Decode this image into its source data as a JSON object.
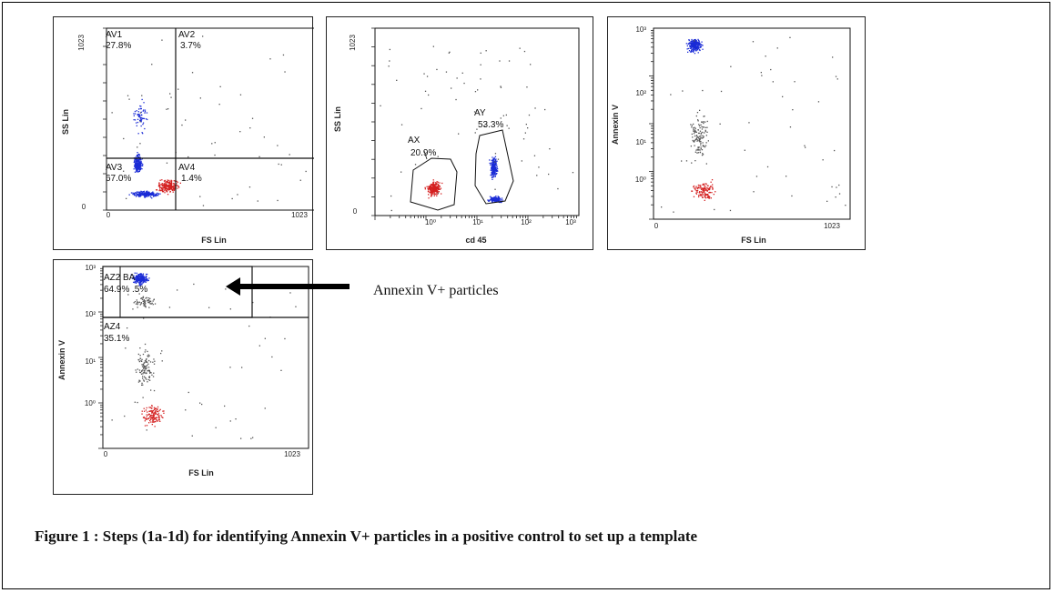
{
  "caption": "Figure 1 : Steps (1a-1d) for identifying Annexin V+ particles in a positive control to set up a template",
  "annotation": {
    "text": "Annexin V+ particles"
  },
  "colors": {
    "gated": "#1a2bd6",
    "ungated": "#d42020",
    "other": "#555555"
  },
  "chart_data": [
    {
      "id": "1a",
      "type": "scatter",
      "xlabel": "FS Lin",
      "ylabel": "SS Lin",
      "xscale": "linear",
      "yscale": "linear",
      "xlim": [
        0,
        1023
      ],
      "ylim": [
        0,
        1023
      ],
      "xticks": [
        {
          "v": 0,
          "label": "0"
        },
        {
          "v": 1023,
          "label": "1023"
        }
      ],
      "yticks": [
        {
          "v": 0,
          "label": "0"
        },
        {
          "v": 1023,
          "label": "1023"
        }
      ],
      "quadrant_divider": {
        "x": 365,
        "y": 315
      },
      "gates": [
        {
          "name": "AV1",
          "value": "27.8%"
        },
        {
          "name": "AV2",
          "value": "3.7%"
        },
        {
          "name": "AV3",
          "value": "67.0%"
        },
        {
          "name": "AV4",
          "value": "1.4%"
        }
      ]
    },
    {
      "id": "1b",
      "type": "scatter",
      "xlabel": "cd 45",
      "ylabel": "SS Lin",
      "xscale": "log",
      "yscale": "linear",
      "xlim": [
        0.1,
        1000
      ],
      "ylim": [
        0,
        1023
      ],
      "xticks": [
        {
          "v": 1,
          "label": "10⁰"
        },
        {
          "v": 10,
          "label": "10¹"
        },
        {
          "v": 100,
          "label": "10²"
        },
        {
          "v": 1000,
          "label": "10³"
        }
      ],
      "yticks": [
        {
          "v": 0,
          "label": "0"
        },
        {
          "v": 1023,
          "label": "1023"
        }
      ],
      "gates": [
        {
          "name": "AX",
          "value": "20.9%"
        },
        {
          "name": "AY",
          "value": "53.3%"
        }
      ]
    },
    {
      "id": "1c",
      "type": "scatter",
      "xlabel": "FS Lin",
      "ylabel": "Annexin V",
      "xscale": "linear",
      "yscale": "log",
      "xlim": [
        0,
        1023
      ],
      "ylim": [
        0.1,
        1000
      ],
      "xticks": [
        {
          "v": 0,
          "label": "0"
        },
        {
          "v": 1023,
          "label": "1023"
        }
      ],
      "yticks": [
        {
          "v": 1,
          "label": "10⁰"
        },
        {
          "v": 10,
          "label": "10¹"
        },
        {
          "v": 100,
          "label": "10²"
        },
        {
          "v": 1000,
          "label": "10³"
        }
      ],
      "gates": []
    },
    {
      "id": "1d",
      "type": "scatter",
      "xlabel": "FS Lin",
      "ylabel": "Annexin V",
      "xscale": "linear",
      "yscale": "log",
      "xlim": [
        0,
        1023
      ],
      "ylim": [
        0.1,
        1000
      ],
      "xticks": [
        {
          "v": 0,
          "label": "0"
        },
        {
          "v": 1023,
          "label": "1023"
        }
      ],
      "yticks": [
        {
          "v": 1,
          "label": "10⁰"
        },
        {
          "v": 10,
          "label": "10¹"
        },
        {
          "v": 100,
          "label": "10²"
        },
        {
          "v": 1000,
          "label": "10³"
        }
      ],
      "gates": [
        {
          "name": "AZ2",
          "value": "64.9%"
        },
        {
          "name": "BA",
          "value": ".5%"
        },
        {
          "name": "AZ4",
          "value": "35.1%"
        }
      ]
    }
  ]
}
